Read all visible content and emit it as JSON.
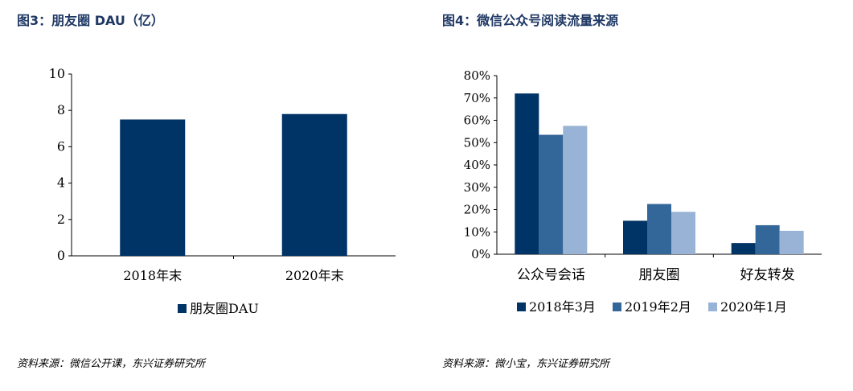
{
  "left_figure": {
    "title": "图3：朋友圈 DAU（亿）",
    "source": "资料来源：微信公开课，东兴证券研究所"
  },
  "right_figure": {
    "title": "图4：微信公众号阅读流量来源",
    "source": "资料来源：微小宝，东兴证券研究所"
  },
  "colors": {
    "navy": "#003366",
    "mid_blue": "#336699",
    "light_blue": "#99b3d6",
    "title_blue": "#1f3864"
  },
  "chart_data": [
    {
      "type": "bar",
      "title": "",
      "categories": [
        "2018年末",
        "2020年末"
      ],
      "series": [
        {
          "name": "朋友圈DAU",
          "values": [
            7.5,
            7.8
          ],
          "color": "#003366"
        }
      ],
      "ylim": [
        0,
        10
      ],
      "yticks": [
        0,
        2,
        4,
        6,
        8,
        10
      ],
      "ytick_labels": [
        "0",
        "2",
        "4",
        "6",
        "8",
        "10"
      ],
      "legend": "bottom",
      "grid": false
    },
    {
      "type": "bar",
      "title": "",
      "categories": [
        "公众号会话",
        "朋友圈",
        "好友转发"
      ],
      "series": [
        {
          "name": "2018年3月",
          "values": [
            0.72,
            0.15,
            0.05
          ],
          "color": "#003366"
        },
        {
          "name": "2019年2月",
          "values": [
            0.535,
            0.225,
            0.13
          ],
          "color": "#336699"
        },
        {
          "name": "2020年1月",
          "values": [
            0.575,
            0.19,
            0.105
          ],
          "color": "#99b3d6"
        }
      ],
      "ylim": [
        0,
        0.8
      ],
      "yticks": [
        0,
        0.1,
        0.2,
        0.3,
        0.4,
        0.5,
        0.6,
        0.7,
        0.8
      ],
      "ytick_labels": [
        "0%",
        "10%",
        "20%",
        "30%",
        "40%",
        "50%",
        "60%",
        "70%",
        "80%"
      ],
      "legend": "bottom",
      "grid": false
    }
  ]
}
